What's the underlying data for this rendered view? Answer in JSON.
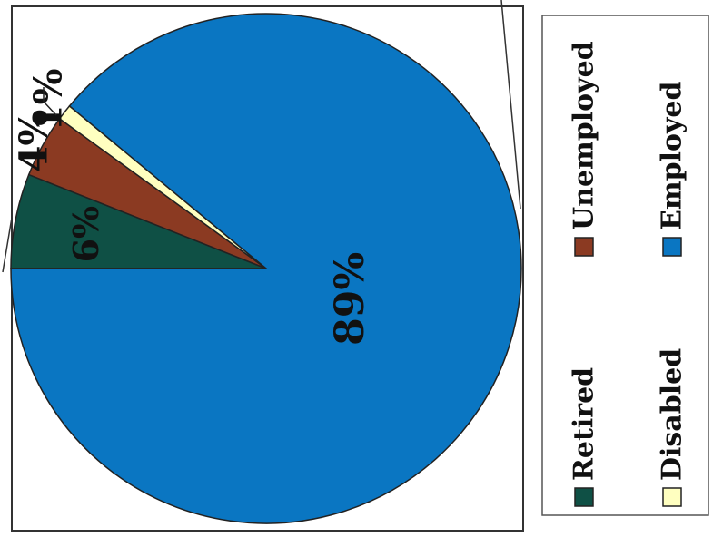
{
  "chart_data": {
    "type": "pie",
    "orientation": "rotated 90 degrees counter-clockwise",
    "categories": [
      "Retired",
      "Unemployed",
      "Disabled",
      "Employed"
    ],
    "values": [
      6,
      4,
      1,
      89
    ],
    "data_labels": [
      "6%",
      "4%",
      "1%",
      "89%"
    ],
    "colors": [
      "#0f5045",
      "#8b3a22",
      "#ffffc0",
      "#0a76c2"
    ],
    "legend": {
      "placement": "right",
      "items": [
        {
          "label": "Retired",
          "color": "#0f5045"
        },
        {
          "label": "Unemployed",
          "color": "#8b3a22"
        },
        {
          "label": "Disabled",
          "color": "#ffffc0"
        },
        {
          "label": "Employed",
          "color": "#0a76c2"
        }
      ]
    }
  }
}
